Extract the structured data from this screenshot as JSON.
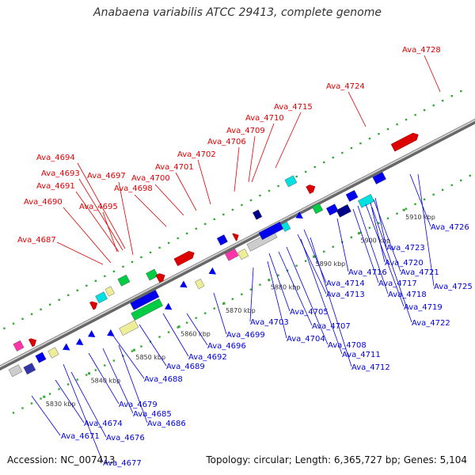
{
  "title": "Anabaena variabilis ATCC 29413, complete genome",
  "footer": {
    "accession": "Accession: NC_007413",
    "summary": "Topology: circular; Length: 6,365,727 bp; Genes: 5,104"
  },
  "colors": {
    "forward_label": "#dd0000",
    "reverse_label": "#0000dd",
    "backbone": "#999999",
    "tick_dots": "#33aa33"
  },
  "kbp_labels": [
    "5830 kbp",
    "5840 kbp",
    "5850 kbp",
    "5860 kbp",
    "5870 kbp",
    "5880 kbp",
    "5890 kbp",
    "5900 kbp",
    "5910 kbp"
  ],
  "forward_genes": [
    "Ava_4687",
    "Ava_4690",
    "Ava_4691",
    "Ava_4693",
    "Ava_4694",
    "Ava_4695",
    "Ava_4697",
    "Ava_4698",
    "Ava_4700",
    "Ava_4701",
    "Ava_4702",
    "Ava_4706",
    "Ava_4709",
    "Ava_4710",
    "Ava_4715",
    "Ava_4724",
    "Ava_4728"
  ],
  "reverse_genes": [
    "Ava_4671",
    "Ava_4674",
    "Ava_4676",
    "Ava_4677",
    "Ava_4679",
    "Ava_4685",
    "Ava_4686",
    "Ava_4688",
    "Ava_4689",
    "Ava_4692",
    "Ava_4696",
    "Ava_4699",
    "Ava_4703",
    "Ava_4704",
    "Ava_4705",
    "Ava_4707",
    "Ava_4708",
    "Ava_4711",
    "Ava_4712",
    "Ava_4713",
    "Ava_4714",
    "Ava_4716",
    "Ava_4717",
    "Ava_4718",
    "Ava_4719",
    "Ava_4720",
    "Ava_4721",
    "Ava_4722",
    "Ava_4723",
    "Ava_4725",
    "Ava_4726"
  ]
}
